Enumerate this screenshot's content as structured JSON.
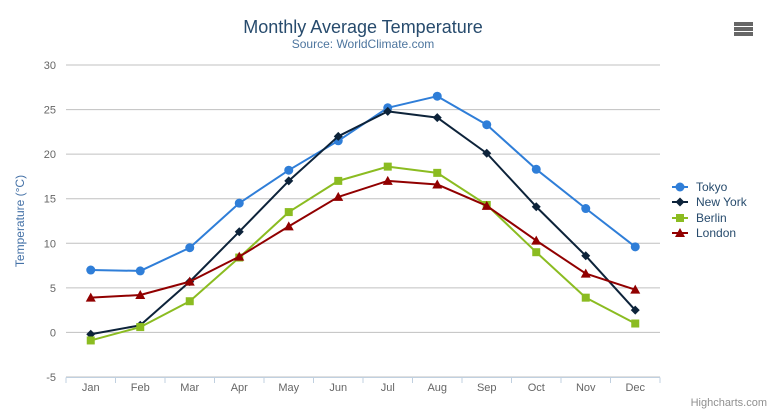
{
  "chart_data": {
    "type": "line",
    "title": "Monthly Average Temperature",
    "subtitle": "Source: WorldClimate.com",
    "xlabel": "",
    "ylabel": "Temperature (°C)",
    "ylim": [
      -5,
      30
    ],
    "ytick_step": 5,
    "grid": true,
    "legend_position": "right",
    "categories": [
      "Jan",
      "Feb",
      "Mar",
      "Apr",
      "May",
      "Jun",
      "Jul",
      "Aug",
      "Sep",
      "Oct",
      "Nov",
      "Dec"
    ],
    "series": [
      {
        "name": "Tokyo",
        "color": "#2f7ed8",
        "marker": "circle",
        "values": [
          7.0,
          6.9,
          9.5,
          14.5,
          18.2,
          21.5,
          25.2,
          26.5,
          23.3,
          18.3,
          13.9,
          9.6
        ]
      },
      {
        "name": "New York",
        "color": "#0d233a",
        "marker": "diamond",
        "values": [
          -0.2,
          0.8,
          5.7,
          11.3,
          17.0,
          22.0,
          24.8,
          24.1,
          20.1,
          14.1,
          8.6,
          2.5
        ]
      },
      {
        "name": "Berlin",
        "color": "#8bbc21",
        "marker": "square",
        "values": [
          -0.9,
          0.6,
          3.5,
          8.4,
          13.5,
          17.0,
          18.6,
          17.9,
          14.3,
          9.0,
          3.9,
          1.0
        ]
      },
      {
        "name": "London",
        "color": "#910000",
        "marker": "triangle",
        "values": [
          3.9,
          4.2,
          5.7,
          8.5,
          11.9,
          15.2,
          17.0,
          16.6,
          14.2,
          10.3,
          6.6,
          4.8
        ]
      }
    ]
  },
  "credits": {
    "label": "Highcharts.com"
  },
  "menu_button": {
    "icon": "hamburger"
  },
  "theme": {
    "background": "#ffffff",
    "title_color": "#274b6d",
    "subtitle_color": "#4d759e",
    "axis_title_color": "#4572a7",
    "axis_label_color": "#666666",
    "grid_color": "#c0c0c0",
    "axis_line_color": "#c0d0e0",
    "legend_text_color": "#274b6d",
    "credits_color": "#909090",
    "menu_icon_color": "#666666"
  }
}
